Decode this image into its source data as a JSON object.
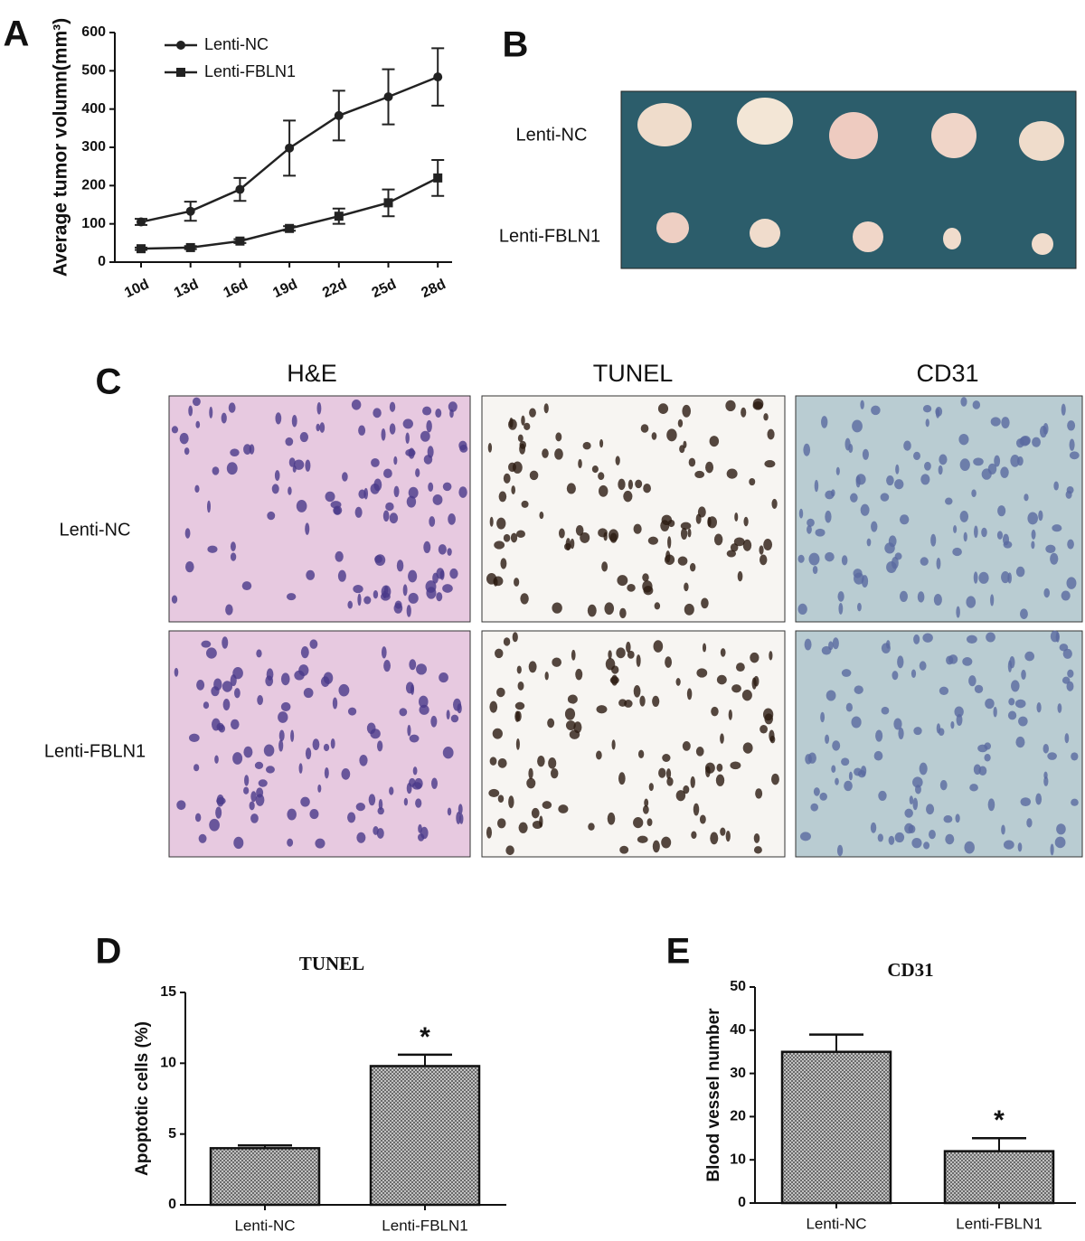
{
  "chart_data": [
    {
      "type": "line",
      "panel": "A",
      "y_label": "Average tumor volumn(mm³)",
      "categories": [
        "10d",
        "13d",
        "16d",
        "19d",
        "22d",
        "25d",
        "28d"
      ],
      "series": [
        {
          "name": "Lenti-NC",
          "color": "#222222",
          "marker": "circle",
          "values": [
            105,
            133,
            190,
            298,
            383,
            432,
            484
          ],
          "errors": [
            8,
            25,
            30,
            72,
            65,
            72,
            75
          ]
        },
        {
          "name": "Lenti-FBLN1",
          "color": "#222222",
          "marker": "square",
          "values": [
            35,
            38,
            55,
            88,
            120,
            155,
            220
          ],
          "errors": [
            3,
            4,
            5,
            6,
            20,
            35,
            47
          ]
        }
      ],
      "ylim": [
        0,
        600
      ],
      "yticks": [
        0,
        100,
        200,
        300,
        400,
        500,
        600
      ],
      "legend": "top-left"
    },
    {
      "type": "bar",
      "panel": "D",
      "title": "TUNEL",
      "y_label": "Apoptotic cells (%)",
      "categories": [
        "Lenti-NC",
        "Lenti-FBLN1"
      ],
      "values": [
        4.0,
        9.8
      ],
      "errors": [
        0.2,
        0.8
      ],
      "significance": [
        null,
        "*"
      ],
      "ylim": [
        0,
        15
      ],
      "yticks": [
        0,
        5,
        10,
        15
      ]
    },
    {
      "type": "bar",
      "panel": "E",
      "title": "CD31",
      "y_label": "Blood vessel number",
      "categories": [
        "Lenti-NC",
        "Lenti-FBLN1"
      ],
      "values": [
        35,
        12
      ],
      "errors": [
        4,
        3
      ],
      "significance": [
        null,
        "*"
      ],
      "ylim": [
        0,
        50
      ],
      "yticks": [
        0,
        10,
        20,
        30,
        40,
        50
      ]
    }
  ],
  "photo_panel": {
    "panel": "B",
    "row_labels": [
      "Lenti-NC",
      "Lenti-FBLN1"
    ]
  },
  "histology_panel": {
    "panel": "C",
    "columns": [
      "H&E",
      "TUNEL",
      "CD31"
    ],
    "row_labels": [
      "Lenti-NC",
      "Lenti-FBLN1"
    ]
  }
}
